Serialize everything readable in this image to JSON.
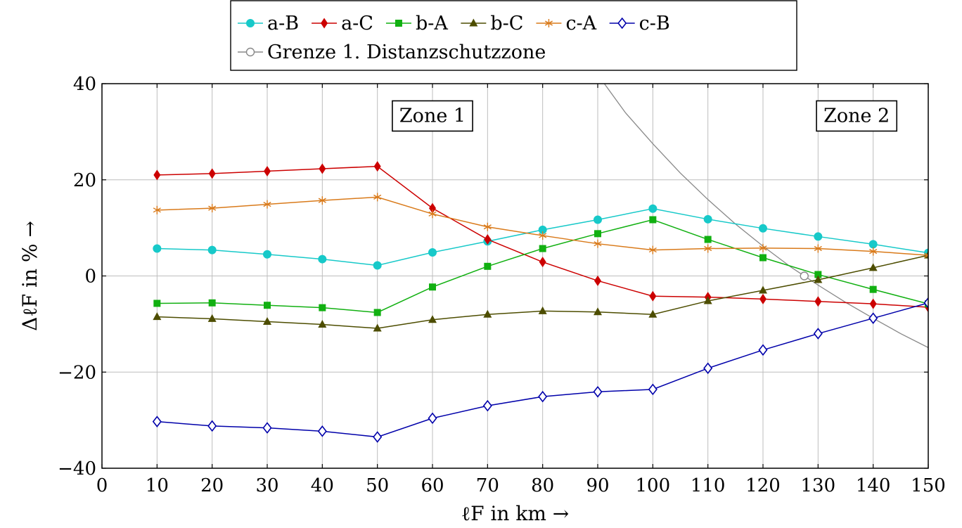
{
  "chart_data": {
    "type": "line",
    "xlabel": "ℓF in km →",
    "ylabel": "ΔℓF in % →",
    "xlim": [
      0,
      150
    ],
    "ylim": [
      -40,
      40
    ],
    "xticks": [
      0,
      10,
      20,
      30,
      40,
      50,
      60,
      70,
      80,
      90,
      100,
      110,
      120,
      130,
      140,
      150
    ],
    "yticks": [
      -40,
      -20,
      0,
      20,
      40
    ],
    "xtick_labels": [
      "0",
      "10",
      "20",
      "30",
      "40",
      "50",
      "60",
      "70",
      "80",
      "90",
      "100",
      "110",
      "120",
      "130",
      "140",
      "150"
    ],
    "ytick_labels": [
      "−40",
      "−20",
      "0",
      "20",
      "40"
    ],
    "grid": true,
    "legend_position": "top-center",
    "annotations": [
      {
        "text": "Zone 1",
        "x": 60,
        "y": 33.5
      },
      {
        "text": "Zone 2",
        "x": 137,
        "y": 33.5
      }
    ],
    "series": [
      {
        "name": "a-B",
        "color": "#17c9c9",
        "marker": "circle",
        "x": [
          10,
          20,
          30,
          40,
          50,
          60,
          70,
          80,
          90,
          100,
          110,
          120,
          130,
          140,
          150
        ],
        "values": [
          5.7,
          5.4,
          4.5,
          3.5,
          2.2,
          4.9,
          7.2,
          9.6,
          11.7,
          14.0,
          11.8,
          9.9,
          8.2,
          6.6,
          4.8
        ]
      },
      {
        "name": "a-C",
        "color": "#cc0000",
        "marker": "diamond",
        "x": [
          10,
          20,
          30,
          40,
          50,
          60,
          70,
          80,
          90,
          100,
          110,
          120,
          130,
          140,
          150
        ],
        "values": [
          21.0,
          21.3,
          21.8,
          22.3,
          22.8,
          14.1,
          7.6,
          2.9,
          -1.0,
          -4.2,
          -4.4,
          -4.8,
          -5.3,
          -5.8,
          -6.5
        ]
      },
      {
        "name": "b-A",
        "color": "#11b011",
        "marker": "square",
        "x": [
          10,
          20,
          30,
          40,
          50,
          60,
          70,
          80,
          90,
          100,
          110,
          120,
          130,
          140,
          150
        ],
        "values": [
          -5.7,
          -5.6,
          -6.1,
          -6.6,
          -7.6,
          -2.3,
          2.0,
          5.7,
          8.8,
          11.7,
          7.6,
          3.8,
          0.3,
          -2.8,
          -5.8
        ]
      },
      {
        "name": "b-C",
        "color": "#4d4d00",
        "marker": "triangle",
        "x": [
          10,
          20,
          30,
          40,
          50,
          60,
          70,
          80,
          90,
          100,
          110,
          120,
          130,
          140,
          150
        ],
        "values": [
          -8.5,
          -8.9,
          -9.5,
          -10.1,
          -10.9,
          -9.1,
          -8.0,
          -7.3,
          -7.5,
          -8.0,
          -5.2,
          -3.0,
          -0.8,
          1.7,
          4.3
        ]
      },
      {
        "name": "c-A",
        "color": "#d97a1a",
        "marker": "asterisk",
        "x": [
          10,
          20,
          30,
          40,
          50,
          60,
          70,
          80,
          90,
          100,
          110,
          120,
          130,
          140,
          150
        ],
        "values": [
          13.7,
          14.1,
          14.9,
          15.7,
          16.4,
          12.9,
          10.2,
          8.4,
          6.7,
          5.4,
          5.7,
          5.8,
          5.7,
          5.1,
          4.3
        ]
      },
      {
        "name": "c-B",
        "color": "#0000aa",
        "marker": "diamond-open",
        "x": [
          10,
          20,
          30,
          40,
          50,
          60,
          70,
          80,
          90,
          100,
          110,
          120,
          130,
          140,
          150
        ],
        "values": [
          -30.3,
          -31.2,
          -31.6,
          -32.3,
          -33.5,
          -29.6,
          -27.0,
          -25.1,
          -24.1,
          -23.6,
          -19.2,
          -15.4,
          -12.0,
          -8.8,
          -5.6
        ]
      },
      {
        "name": "Grenze 1. Distanzschutzzone",
        "color": "#888888",
        "marker": "circle-open",
        "x": [
          91.2,
          95,
          100,
          105,
          110,
          115,
          120,
          125,
          130,
          135,
          140,
          145,
          150
        ],
        "values": [
          40.0,
          34.0,
          27.5,
          21.4,
          15.9,
          10.8,
          6.2,
          1.9,
          -1.9,
          -5.5,
          -8.8,
          -12.0,
          -14.9
        ],
        "marker_points": [
          [
            127.5,
            0.0
          ]
        ]
      }
    ]
  }
}
